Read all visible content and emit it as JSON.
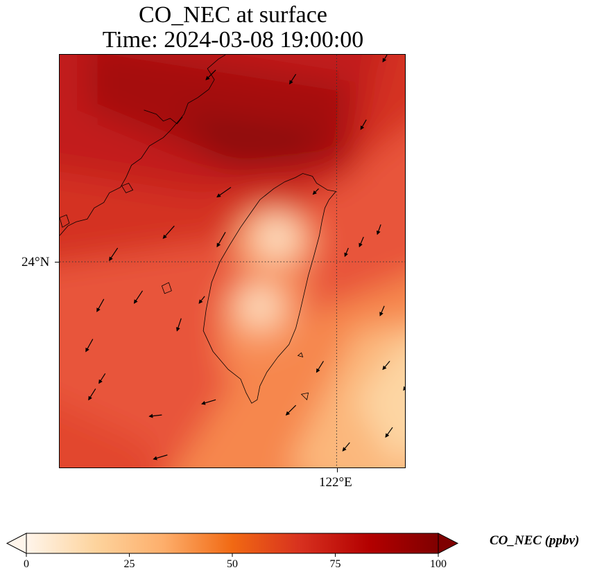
{
  "title": {
    "line1": "CO_NEC at surface",
    "line2": "Time: 2024-03-08 19:00:00"
  },
  "axes": {
    "lat_label": "24°N",
    "lon_label": "122°E"
  },
  "colorbar": {
    "label": "CO_NEC (ppbv)",
    "ticks": [
      "0",
      "25",
      "50",
      "75",
      "100"
    ],
    "range": [
      0,
      100
    ],
    "colormap": [
      "#fff5eb",
      "#fdd49e",
      "#fdae6b",
      "#f16913",
      "#d7301f",
      "#b30000",
      "#7f0000"
    ],
    "extend": "both"
  },
  "map": {
    "region": "Taiwan and southeast China coast",
    "field": "CO_NEC concentration",
    "gridlines": "dotted at 24°N and 122°E",
    "wind_vectors": "shown as black arrows"
  }
}
